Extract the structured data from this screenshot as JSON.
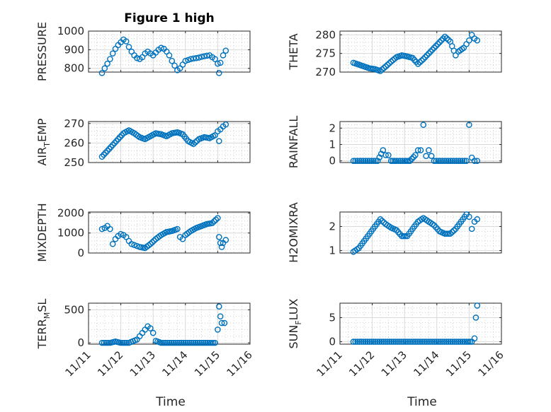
{
  "figure": {
    "title": "Figure 1 high",
    "colors": {
      "marker": "#0072BD",
      "axis": "#262626",
      "grid": "#c8c8c8"
    }
  },
  "chart_data": [
    {
      "type": "scatter",
      "ylabel": "PRESSURE",
      "xlim": [
        "11/11",
        "11/16"
      ],
      "ylim": [
        780,
        1000
      ],
      "yticks": [
        "800",
        "900",
        "1000"
      ],
      "grid": true,
      "x": [
        "11/11 10:00",
        "11/11 12:00",
        "11/11 14:00",
        "11/11 16:00",
        "11/11 18:00",
        "11/11 20:00",
        "11/11 22:00",
        "11/12 00:00",
        "11/12 02:00",
        "11/12 04:00",
        "11/12 06:00",
        "11/12 08:00",
        "11/12 10:00",
        "11/12 12:00",
        "11/12 14:00",
        "11/12 16:00",
        "11/12 18:00",
        "11/12 20:00",
        "11/12 22:00",
        "11/13 00:00",
        "11/13 02:00",
        "11/13 04:00",
        "11/13 06:00",
        "11/13 08:00",
        "11/13 10:00",
        "11/13 12:00",
        "11/13 14:00",
        "11/13 16:00",
        "11/13 18:00",
        "11/13 20:00",
        "11/13 22:00",
        "11/14 00:00",
        "11/14 02:00",
        "11/14 04:00",
        "11/14 06:00",
        "11/14 08:00",
        "11/14 10:00",
        "11/14 12:00",
        "11/14 14:00",
        "11/14 16:00",
        "11/14 18:00",
        "11/14 20:00",
        "11/14 22:00",
        "11/15 00:00",
        "11/15 01:00",
        "11/15 02:00",
        "11/15 04:00",
        "11/15 06:00"
      ],
      "values": [
        775,
        800,
        825,
        850,
        880,
        905,
        925,
        940,
        955,
        945,
        915,
        890,
        870,
        855,
        850,
        860,
        880,
        890,
        880,
        870,
        885,
        900,
        910,
        905,
        890,
        870,
        840,
        815,
        790,
        800,
        820,
        840,
        845,
        850,
        853,
        855,
        858,
        862,
        865,
        868,
        870,
        860,
        850,
        825,
        775,
        830,
        870,
        895
      ]
    },
    {
      "type": "scatter",
      "ylabel": "THETA",
      "xlim": [
        "11/11",
        "11/16"
      ],
      "ylim": [
        270,
        281
      ],
      "yticks": [
        "270",
        "275",
        "280"
      ],
      "grid": true,
      "x": [
        "11/11 10:00",
        "11/11 14:00",
        "11/11 18:00",
        "11/11 22:00",
        "11/12 02:00",
        "11/12 06:00",
        "11/12 10:00",
        "11/12 14:00",
        "11/12 18:00",
        "11/12 22:00",
        "11/13 02:00",
        "11/13 06:00",
        "11/13 10:00",
        "11/13 14:00",
        "11/13 18:00",
        "11/13 22:00",
        "11/14 02:00",
        "11/14 06:00",
        "11/14 10:00",
        "11/14 14:00",
        "11/14 16:00",
        "11/14 20:00",
        "11/14 22:00",
        "11/15 00:00",
        "11/15 02:00",
        "11/15 04:00",
        "11/15 06:00"
      ],
      "values": [
        272.5,
        272,
        271.5,
        271,
        270.8,
        270.3,
        271.5,
        272.8,
        274,
        274.5,
        274.2,
        273.8,
        272.2,
        273.5,
        275,
        276.5,
        278,
        279.5,
        278.2,
        274.5,
        275.5,
        276.5,
        277.5,
        278.5,
        280,
        279,
        278.5
      ]
    },
    {
      "type": "scatter",
      "ylabel": "AIR_TEMP",
      "ylabel_display": [
        "AIR",
        "T",
        "EMP"
      ],
      "xlim": [
        "11/11",
        "11/16"
      ],
      "ylim": [
        250,
        271
      ],
      "yticks": [
        "250",
        "260",
        "270"
      ],
      "grid": true,
      "x": [
        "11/11 10:00",
        "11/11 14:00",
        "11/11 18:00",
        "11/11 22:00",
        "11/12 02:00",
        "11/12 06:00",
        "11/12 10:00",
        "11/12 14:00",
        "11/12 18:00",
        "11/12 22:00",
        "11/13 02:00",
        "11/13 06:00",
        "11/13 10:00",
        "11/13 14:00",
        "11/13 18:00",
        "11/13 22:00",
        "11/14 02:00",
        "11/14 06:00",
        "11/14 10:00",
        "11/14 14:00",
        "11/14 18:00",
        "11/14 22:00",
        "11/15 00:00",
        "11/15 01:00",
        "11/15 02:00",
        "11/15 04:00",
        "11/15 06:00"
      ],
      "values": [
        253,
        256,
        259,
        262,
        265,
        266.5,
        265,
        263,
        262,
        263.5,
        265,
        264.5,
        263.5,
        265,
        265.5,
        264.5,
        261,
        259.5,
        262,
        263,
        262.5,
        264,
        266,
        261,
        267,
        268.5,
        269.5
      ]
    },
    {
      "type": "scatter",
      "ylabel": "RAINFALL",
      "xlim": [
        "11/11",
        "11/16"
      ],
      "ylim": [
        -0.1,
        2.4
      ],
      "yticks": [
        "0",
        "1",
        "2"
      ],
      "grid": true,
      "x": [
        "11/11 10:00",
        "11/11 16:00",
        "11/11 22:00",
        "11/12 04:00",
        "11/12 08:00",
        "11/12 10:00",
        "11/12 12:00",
        "11/12 14:00",
        "11/12 18:00",
        "11/13 00:00",
        "11/13 04:00",
        "11/13 08:00",
        "11/13 10:00",
        "11/13 12:00",
        "11/13 14:00",
        "11/13 16:00",
        "11/13 18:00",
        "11/13 20:00",
        "11/13 22:00",
        "11/14 04:00",
        "11/14 10:00",
        "11/14 16:00",
        "11/14 22:00",
        "11/15 00:00",
        "11/15 02:00",
        "11/15 04:00",
        "11/15 06:00"
      ],
      "values": [
        0,
        0,
        0,
        0,
        0.65,
        0.35,
        0.35,
        0,
        0,
        0,
        0,
        0.35,
        0.65,
        0.65,
        2.2,
        0.3,
        0.65,
        0.3,
        0,
        0,
        0,
        0,
        0,
        2.2,
        0.2,
        0,
        0
      ]
    },
    {
      "type": "scatter",
      "ylabel": "MIXDEPTH",
      "xlim": [
        "11/11",
        "11/16"
      ],
      "ylim": [
        0,
        2050
      ],
      "yticks": [
        "0",
        "1000",
        "2000"
      ],
      "grid": true,
      "x": [
        "11/11 10:00",
        "11/11 12:00",
        "11/11 14:00",
        "11/11 16:00",
        "11/11 18:00",
        "11/11 20:00",
        "11/11 22:00",
        "11/12 00:00",
        "11/12 02:00",
        "11/12 04:00",
        "11/12 06:00",
        "11/12 08:00",
        "11/12 10:00",
        "11/12 12:00",
        "11/12 14:00",
        "11/12 18:00",
        "11/12 22:00",
        "11/13 02:00",
        "11/13 06:00",
        "11/13 10:00",
        "11/13 14:00",
        "11/13 18:00",
        "11/13 20:00",
        "11/13 22:00",
        "11/14 00:00",
        "11/14 04:00",
        "11/14 08:00",
        "11/14 12:00",
        "11/14 16:00",
        "11/14 20:00",
        "11/15 00:00",
        "11/15 01:00",
        "11/15 02:00",
        "11/15 03:00",
        "11/15 04:00",
        "11/15 06:00"
      ],
      "values": [
        1200,
        1250,
        1350,
        1200,
        450,
        700,
        850,
        950,
        900,
        800,
        600,
        450,
        400,
        350,
        300,
        250,
        450,
        700,
        900,
        1050,
        1100,
        1200,
        800,
        700,
        900,
        1100,
        1250,
        1350,
        1450,
        1500,
        1750,
        800,
        500,
        300,
        500,
        650
      ]
    },
    {
      "type": "scatter",
      "ylabel": "H2OMIXRA",
      "xlim": [
        "11/11",
        "11/16"
      ],
      "ylim": [
        0.9,
        2.6
      ],
      "yticks": [
        "1",
        "2"
      ],
      "grid": true,
      "x": [
        "11/11 10:00",
        "11/11 14:00",
        "11/11 18:00",
        "11/11 22:00",
        "11/12 02:00",
        "11/12 06:00",
        "11/12 10:00",
        "11/12 14:00",
        "11/12 18:00",
        "11/12 22:00",
        "11/13 02:00",
        "11/13 06:00",
        "11/13 10:00",
        "11/13 14:00",
        "11/13 18:00",
        "11/13 22:00",
        "11/14 02:00",
        "11/14 06:00",
        "11/14 10:00",
        "11/14 14:00",
        "11/14 18:00",
        "11/14 22:00",
        "11/15 00:00",
        "11/15 02:00",
        "11/15 04:00",
        "11/15 06:00"
      ],
      "values": [
        0.95,
        1.1,
        1.4,
        1.7,
        2.0,
        2.3,
        2.1,
        1.95,
        1.85,
        1.6,
        1.6,
        1.9,
        2.2,
        2.35,
        2.2,
        2.05,
        1.8,
        1.7,
        1.7,
        1.9,
        2.2,
        2.5,
        2.4,
        1.9,
        2.2,
        2.3
      ]
    },
    {
      "type": "scatter",
      "ylabel": "TERR_MSL",
      "ylabel_display": [
        "TERR",
        "M",
        "SL"
      ],
      "xlim": [
        "11/11",
        "11/16"
      ],
      "ylim": [
        -20,
        600
      ],
      "yticks": [
        "0",
        "500"
      ],
      "grid": true,
      "x": [
        "11/11 10:00",
        "11/11 16:00",
        "11/11 20:00",
        "11/12 00:00",
        "11/12 06:00",
        "11/12 12:00",
        "11/12 14:00",
        "11/12 16:00",
        "11/12 18:00",
        "11/12 20:00",
        "11/12 22:00",
        "11/13 00:00",
        "11/13 02:00",
        "11/13 06:00",
        "11/13 12:00",
        "11/13 18:00",
        "11/14 00:00",
        "11/14 06:00",
        "11/14 12:00",
        "11/14 18:00",
        "11/14 22:00",
        "11/15 00:00",
        "11/15 01:00",
        "11/15 02:00",
        "11/15 03:00",
        "11/15 05:00"
      ],
      "values": [
        0,
        0,
        20,
        0,
        0,
        50,
        100,
        150,
        200,
        250,
        220,
        150,
        30,
        0,
        0,
        0,
        0,
        0,
        0,
        0,
        0,
        200,
        550,
        400,
        300,
        300
      ]
    },
    {
      "type": "scatter",
      "ylabel": "SUN_FLUX",
      "ylabel_display": [
        "SUN",
        "F",
        "LUX"
      ],
      "xlim": [
        "11/11",
        "11/16"
      ],
      "ylim": [
        -0.5,
        8
      ],
      "yticks": [
        "0",
        "5"
      ],
      "grid": true,
      "x": [
        "11/11 10:00",
        "11/11 16:00",
        "11/11 22:00",
        "11/12 04:00",
        "11/12 10:00",
        "11/12 16:00",
        "11/12 22:00",
        "11/13 04:00",
        "11/13 10:00",
        "11/13 16:00",
        "11/13 22:00",
        "11/14 04:00",
        "11/14 10:00",
        "11/14 16:00",
        "11/14 22:00",
        "11/15 02:00",
        "11/15 04:00",
        "11/15 05:00",
        "11/15 06:00"
      ],
      "values": [
        0,
        0,
        0,
        0,
        0,
        0,
        0,
        0,
        0,
        0,
        0,
        0,
        0,
        0,
        0,
        0,
        0.7,
        5.0,
        7.5
      ]
    }
  ],
  "xaxis": {
    "tick_labels": [
      "11/11",
      "11/12",
      "11/13",
      "11/14",
      "11/15",
      "11/16"
    ],
    "label": "Time"
  }
}
